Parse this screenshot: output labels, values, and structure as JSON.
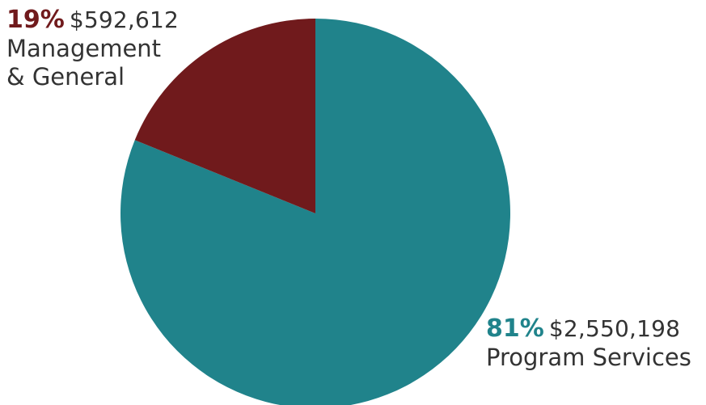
{
  "chart_data": {
    "type": "pie",
    "title": "",
    "slices": [
      {
        "label": "Management & General",
        "label_lines": [
          "Management",
          "& General"
        ],
        "percent_label": "19%",
        "amount_label": "$592,612",
        "value": 592612,
        "color": "#701a1c"
      },
      {
        "label": "Program Services",
        "label_lines": [
          "Program Services"
        ],
        "percent_label": "81%",
        "amount_label": "$2,550,198",
        "value": 2550198,
        "color": "#20838b"
      }
    ],
    "legend": "none",
    "start": "12 o'clock, counter-clockwise"
  }
}
